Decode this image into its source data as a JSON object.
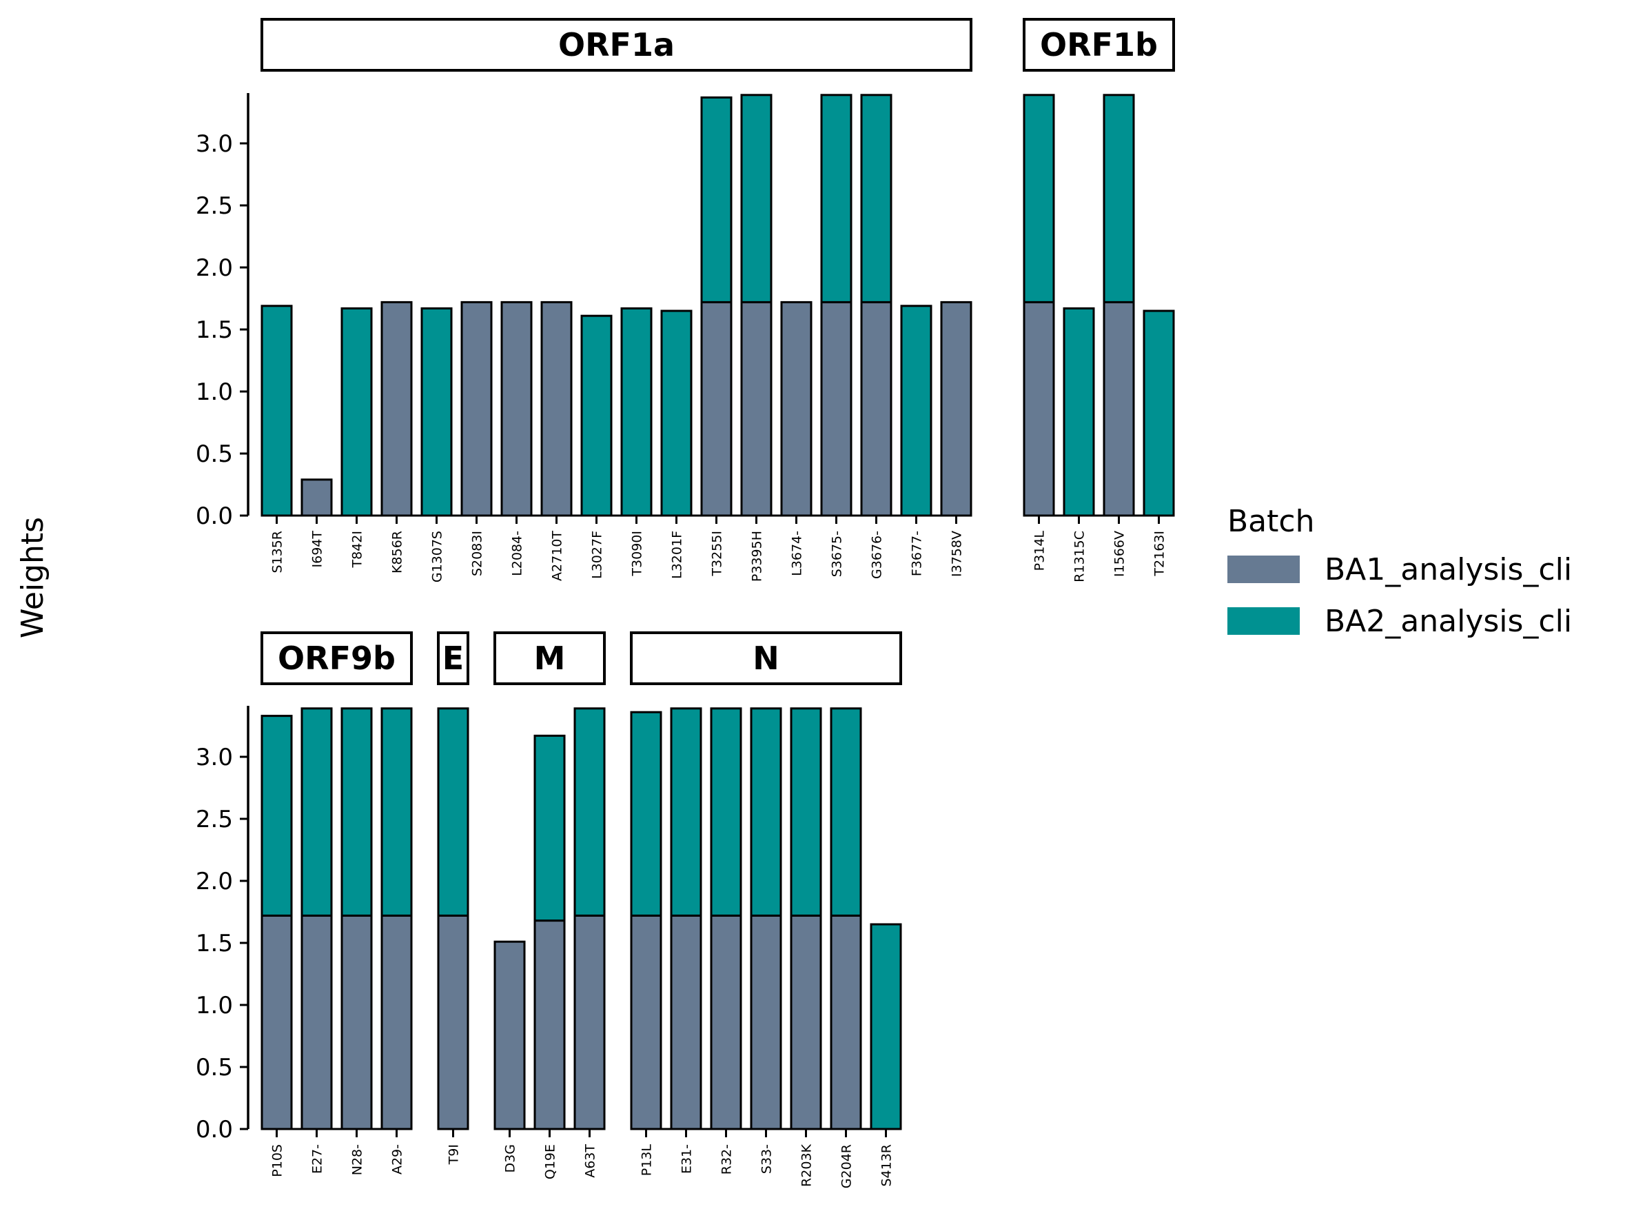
{
  "chart_data": {
    "type": "bar",
    "stacked": true,
    "ylabel": "Weights",
    "ylim": [
      0,
      3.4
    ],
    "yticks": [
      "0.0",
      "0.5",
      "1.0",
      "1.5",
      "2.0",
      "2.5",
      "3.0"
    ],
    "legend": {
      "title": "Batch",
      "position": "right",
      "entries": [
        {
          "name": "BA1_analysis_cli",
          "color": "#667a92"
        },
        {
          "name": "BA2_analysis_cli",
          "color": "#009191"
        }
      ]
    },
    "panels": [
      {
        "row": "top",
        "facets": [
          {
            "title": "ORF1a",
            "bars": [
              {
                "label": "S135R",
                "BA1": 0,
                "BA2": 1.69
              },
              {
                "label": "I694T",
                "BA1": 0.29,
                "BA2": 0
              },
              {
                "label": "T842I",
                "BA1": 0,
                "BA2": 1.67
              },
              {
                "label": "K856R",
                "BA1": 1.72,
                "BA2": 0
              },
              {
                "label": "G1307S",
                "BA1": 0,
                "BA2": 1.67
              },
              {
                "label": "S2083I",
                "BA1": 1.72,
                "BA2": 0
              },
              {
                "label": "L2084-",
                "BA1": 1.72,
                "BA2": 0
              },
              {
                "label": "A2710T",
                "BA1": 1.72,
                "BA2": 0
              },
              {
                "label": "L3027F",
                "BA1": 0,
                "BA2": 1.61
              },
              {
                "label": "T3090I",
                "BA1": 0,
                "BA2": 1.67
              },
              {
                "label": "L3201F",
                "BA1": 0,
                "BA2": 1.65
              },
              {
                "label": "T3255I",
                "BA1": 1.72,
                "BA2": 1.65
              },
              {
                "label": "P3395H",
                "BA1": 1.72,
                "BA2": 1.67
              },
              {
                "label": "L3674-",
                "BA1": 1.72,
                "BA2": 0
              },
              {
                "label": "S3675-",
                "BA1": 1.72,
                "BA2": 1.67
              },
              {
                "label": "G3676-",
                "BA1": 1.72,
                "BA2": 1.67
              },
              {
                "label": "F3677-",
                "BA1": 0,
                "BA2": 1.69
              },
              {
                "label": "I3758V",
                "BA1": 1.72,
                "BA2": 0
              }
            ]
          },
          {
            "title": "ORF1b",
            "bars": [
              {
                "label": "P314L",
                "BA1": 1.72,
                "BA2": 1.67
              },
              {
                "label": "R1315C",
                "BA1": 0,
                "BA2": 1.67
              },
              {
                "label": "I1566V",
                "BA1": 1.72,
                "BA2": 1.67
              },
              {
                "label": "T2163I",
                "BA1": 0,
                "BA2": 1.65
              }
            ]
          }
        ]
      },
      {
        "row": "bottom",
        "facets": [
          {
            "title": "ORF9b",
            "bars": [
              {
                "label": "P10S",
                "BA1": 1.72,
                "BA2": 1.61
              },
              {
                "label": "E27-",
                "BA1": 1.72,
                "BA2": 1.67
              },
              {
                "label": "N28-",
                "BA1": 1.72,
                "BA2": 1.67
              },
              {
                "label": "A29-",
                "BA1": 1.72,
                "BA2": 1.67
              }
            ]
          },
          {
            "title": "E",
            "bars": [
              {
                "label": "T9I",
                "BA1": 1.72,
                "BA2": 1.67
              }
            ]
          },
          {
            "title": "M",
            "bars": [
              {
                "label": "D3G",
                "BA1": 1.51,
                "BA2": 0
              },
              {
                "label": "Q19E",
                "BA1": 1.68,
                "BA2": 1.49
              },
              {
                "label": "A63T",
                "BA1": 1.72,
                "BA2": 1.67
              }
            ]
          },
          {
            "title": "N",
            "bars": [
              {
                "label": "P13L",
                "BA1": 1.72,
                "BA2": 1.64
              },
              {
                "label": "E31-",
                "BA1": 1.72,
                "BA2": 1.67
              },
              {
                "label": "R32-",
                "BA1": 1.72,
                "BA2": 1.67
              },
              {
                "label": "S33-",
                "BA1": 1.72,
                "BA2": 1.67
              },
              {
                "label": "R203K",
                "BA1": 1.72,
                "BA2": 1.67
              },
              {
                "label": "G204R",
                "BA1": 1.72,
                "BA2": 1.67
              },
              {
                "label": "S413R",
                "BA1": 0,
                "BA2": 1.65
              }
            ]
          }
        ]
      }
    ]
  }
}
